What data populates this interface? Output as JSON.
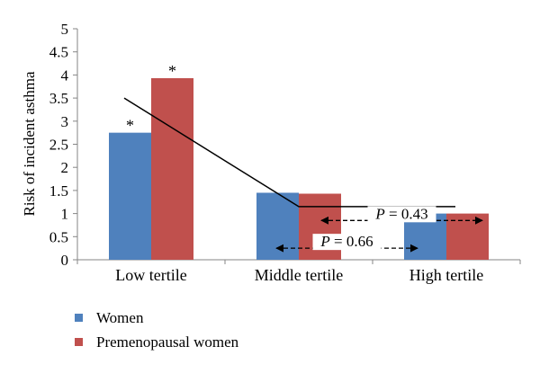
{
  "chart_data": {
    "type": "bar",
    "title": "",
    "xlabel": "",
    "ylabel": "Risk of incident asthma",
    "ylim": [
      0,
      5
    ],
    "yticks": [
      "0",
      "0.5",
      "1",
      "1.5",
      "2",
      "2.5",
      "3",
      "3.5",
      "4",
      "4.5",
      "5"
    ],
    "categories": [
      "Low tertile",
      "Middle tertile",
      "High tertile"
    ],
    "series": [
      {
        "name": "Women",
        "values": [
          2.75,
          1.45,
          1.0
        ],
        "color": "#4f81bd"
      },
      {
        "name": "Premenopausal women",
        "values": [
          3.93,
          1.43,
          1.0
        ],
        "color": "#c0504d"
      }
    ],
    "significance_marker": "*",
    "significance_categories": [
      0
    ],
    "trend_line": {
      "points": [
        [
          0,
          3.5
        ],
        [
          1,
          1.15
        ],
        [
          2,
          1.15
        ]
      ]
    },
    "annotations": [
      {
        "italic": "P",
        "rest": " = 0.43",
        "from_category": 1,
        "to_category": 2,
        "y": 0.85
      },
      {
        "italic": "P",
        "rest": " = 0.66",
        "from_category": 1,
        "to_category": 2,
        "y": 0.25
      }
    ],
    "legend_position": "bottom-left",
    "grid": false
  }
}
